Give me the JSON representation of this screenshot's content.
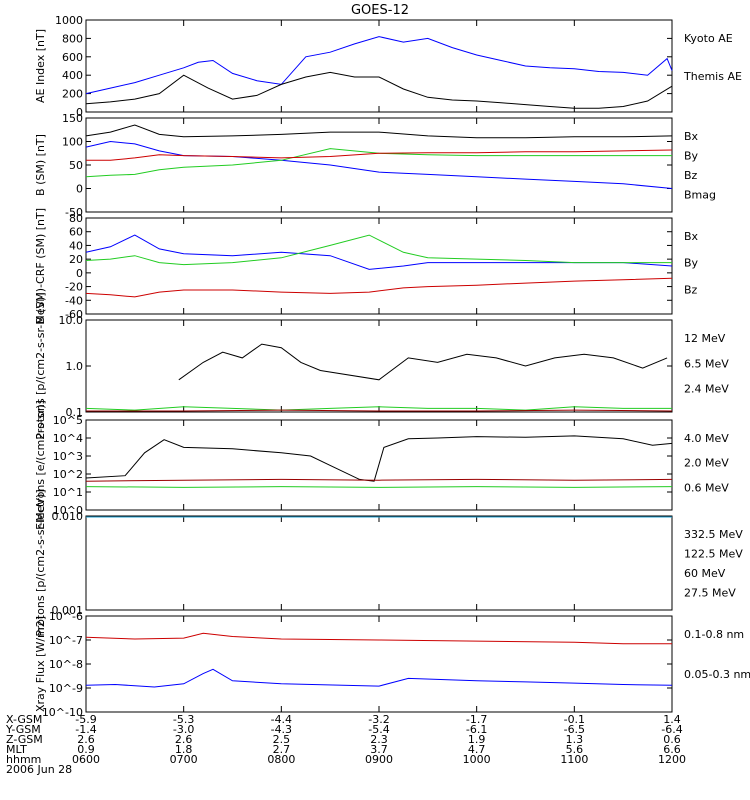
{
  "title": "GOES-12",
  "colors": {
    "blue": "#0000ff",
    "black": "#000000",
    "green": "#22cc22",
    "red": "#cc0000",
    "darkred": "#990000",
    "yellow": "#e6c800",
    "cyan": "#1fa3d6"
  },
  "chart_data": [
    {
      "type": "line",
      "ylabel": "AE Index [nT]",
      "ylim": [
        0,
        1000
      ],
      "yscale": "linear",
      "yticks": [
        "0",
        "200",
        "400",
        "600",
        "800",
        "1000"
      ],
      "legend": [
        {
          "label": "Kyoto AE",
          "color": "#0000ff"
        },
        {
          "label": "Themis AE",
          "color": "#000000"
        }
      ],
      "series": [
        {
          "name": "Kyoto AE",
          "color": "#0000ff",
          "x": [
            0,
            0.25,
            0.5,
            0.75,
            1,
            1.15,
            1.3,
            1.5,
            1.75,
            2,
            2.25,
            2.5,
            2.75,
            3,
            3.25,
            3.5,
            3.75,
            4,
            4.25,
            4.5,
            4.75,
            5,
            5.25,
            5.5,
            5.75,
            5.95,
            6
          ],
          "y": [
            200,
            260,
            320,
            400,
            480,
            540,
            560,
            420,
            340,
            300,
            600,
            650,
            740,
            820,
            760,
            800,
            700,
            620,
            560,
            500,
            480,
            470,
            440,
            430,
            400,
            580,
            450
          ]
        },
        {
          "name": "Themis AE",
          "color": "#000000",
          "x": [
            0,
            0.25,
            0.5,
            0.75,
            1,
            1.25,
            1.5,
            1.75,
            2,
            2.25,
            2.5,
            2.75,
            3,
            3.25,
            3.5,
            3.75,
            4,
            4.25,
            4.5,
            4.75,
            5,
            5.25,
            5.5,
            5.75,
            6
          ],
          "y": [
            90,
            110,
            140,
            200,
            400,
            260,
            140,
            180,
            300,
            380,
            430,
            380,
            380,
            250,
            160,
            130,
            120,
            100,
            80,
            60,
            40,
            40,
            60,
            120,
            280
          ]
        }
      ]
    },
    {
      "type": "line",
      "ylabel": "B (SM) [nT]",
      "ylim": [
        -50,
        150
      ],
      "yscale": "linear",
      "yticks": [
        "-50",
        "0",
        "50",
        "100",
        "150"
      ],
      "legend": [
        {
          "label": "Bx",
          "color": "#0000ff"
        },
        {
          "label": "By",
          "color": "#22cc22"
        },
        {
          "label": "Bz",
          "color": "#cc0000"
        },
        {
          "label": "Bmag",
          "color": "#000000"
        }
      ],
      "series": [
        {
          "name": "Bx",
          "color": "#0000ff",
          "x": [
            0,
            0.25,
            0.5,
            0.75,
            1,
            1.5,
            2,
            2.5,
            3,
            3.5,
            4,
            4.5,
            5,
            5.5,
            6
          ],
          "y": [
            88,
            100,
            95,
            80,
            70,
            68,
            60,
            50,
            35,
            30,
            25,
            20,
            15,
            10,
            0
          ]
        },
        {
          "name": "By",
          "color": "#22cc22",
          "x": [
            0,
            0.25,
            0.5,
            0.75,
            1,
            1.5,
            2,
            2.5,
            3,
            3.5,
            4,
            4.5,
            5,
            5.5,
            6
          ],
          "y": [
            25,
            28,
            30,
            40,
            45,
            50,
            60,
            85,
            75,
            72,
            70,
            70,
            70,
            70,
            70
          ]
        },
        {
          "name": "Bz",
          "color": "#cc0000",
          "x": [
            0,
            0.25,
            0.5,
            0.75,
            1,
            1.5,
            2,
            2.5,
            3,
            3.5,
            4,
            4.5,
            5,
            5.5,
            6
          ],
          "y": [
            60,
            60,
            65,
            72,
            70,
            68,
            65,
            68,
            75,
            76,
            76,
            78,
            78,
            80,
            82
          ]
        },
        {
          "name": "Bmag",
          "color": "#000000",
          "x": [
            0,
            0.25,
            0.5,
            0.75,
            1,
            1.5,
            2,
            2.5,
            3,
            3.5,
            4,
            4.5,
            5,
            5.5,
            6
          ],
          "y": [
            112,
            120,
            135,
            115,
            110,
            112,
            115,
            120,
            120,
            112,
            108,
            108,
            110,
            110,
            112
          ]
        }
      ]
    },
    {
      "type": "line",
      "ylabel": "B (SM)-CRF (SM) [nT]",
      "ylim": [
        -60,
        80
      ],
      "yscale": "linear",
      "yticks": [
        "-60",
        "-40",
        "-20",
        "0",
        "20",
        "40",
        "60",
        "80"
      ],
      "legend": [
        {
          "label": "Bx",
          "color": "#0000ff"
        },
        {
          "label": "By",
          "color": "#22cc22"
        },
        {
          "label": "Bz",
          "color": "#cc0000"
        }
      ],
      "series": [
        {
          "name": "Bx",
          "color": "#0000ff",
          "x": [
            0,
            0.25,
            0.5,
            0.75,
            1,
            1.5,
            2,
            2.5,
            2.9,
            3.25,
            3.5,
            4,
            4.5,
            5,
            5.5,
            6
          ],
          "y": [
            30,
            38,
            55,
            35,
            28,
            25,
            30,
            25,
            5,
            10,
            15,
            15,
            15,
            15,
            15,
            10
          ]
        },
        {
          "name": "By",
          "color": "#22cc22",
          "x": [
            0,
            0.25,
            0.5,
            0.75,
            1,
            1.5,
            2,
            2.5,
            2.9,
            3.25,
            3.5,
            4,
            4.5,
            5,
            5.5,
            6
          ],
          "y": [
            18,
            20,
            25,
            15,
            12,
            15,
            22,
            40,
            55,
            30,
            22,
            20,
            18,
            15,
            15,
            15
          ]
        },
        {
          "name": "Bz",
          "color": "#cc0000",
          "x": [
            0,
            0.25,
            0.5,
            0.75,
            1,
            1.5,
            2,
            2.5,
            2.9,
            3.25,
            3.5,
            4,
            4.5,
            5,
            5.5,
            6
          ],
          "y": [
            -30,
            -32,
            -35,
            -28,
            -25,
            -25,
            -28,
            -30,
            -28,
            -22,
            -20,
            -18,
            -15,
            -12,
            -10,
            -8
          ]
        }
      ]
    },
    {
      "type": "line",
      "ylabel": "Protons [p/(cm2-s-sr-MeV)]",
      "ylim": [
        0.1,
        10
      ],
      "yscale": "log",
      "yticks": [
        "0.1",
        "1.0",
        "10.0"
      ],
      "legend": [
        {
          "label": "12 MeV",
          "color": "#990000"
        },
        {
          "label": "6.5 MeV",
          "color": "#22cc22"
        },
        {
          "label": "2.4 MeV",
          "color": "#000000"
        }
      ],
      "series": [
        {
          "name": "2.4 MeV",
          "color": "#000000",
          "x": [
            0.95,
            1.2,
            1.4,
            1.6,
            1.8,
            2,
            2.2,
            2.4,
            3.0,
            3.3,
            3.6,
            3.9,
            4.2,
            4.5,
            4.8,
            5.1,
            5.4,
            5.7,
            5.95
          ],
          "y": [
            0.5,
            1.2,
            2.0,
            1.5,
            3.0,
            2.5,
            1.2,
            0.8,
            0.5,
            1.5,
            1.2,
            1.8,
            1.5,
            1.0,
            1.5,
            1.8,
            1.5,
            0.9,
            1.5
          ]
        },
        {
          "name": "6.5 MeV",
          "color": "#22cc22",
          "x": [
            0,
            0.5,
            1,
            1.5,
            2,
            2.5,
            3,
            3.5,
            4,
            4.5,
            5,
            5.5,
            6
          ],
          "y": [
            0.12,
            0.11,
            0.13,
            0.12,
            0.11,
            0.12,
            0.13,
            0.12,
            0.12,
            0.11,
            0.13,
            0.12,
            0.12
          ]
        },
        {
          "name": "12 MeV",
          "color": "#990000",
          "x": [
            0,
            1,
            2,
            3,
            4,
            5,
            6
          ],
          "y": [
            0.1,
            0.1,
            0.11,
            0.1,
            0.1,
            0.11,
            0.1
          ]
        }
      ]
    },
    {
      "type": "line",
      "ylabel": "Electrons [e/(cm2-s-sr)]",
      "ylim": [
        1,
        100000
      ],
      "yscale": "log",
      "yticks": [
        "10^0",
        "10^1",
        "10^2",
        "10^3",
        "10^4",
        "10^5"
      ],
      "legend": [
        {
          "label": "4.0 MeV",
          "color": "#990000"
        },
        {
          "label": "2.0 MeV",
          "color": "#22cc22"
        },
        {
          "label": "0.6 MeV",
          "color": "#000000"
        }
      ],
      "series": [
        {
          "name": "0.6 MeV",
          "color": "#000000",
          "x": [
            0,
            0.4,
            0.6,
            0.8,
            1.0,
            1.5,
            2.0,
            2.3,
            2.5,
            2.8,
            2.95,
            3.05,
            3.3,
            3.6,
            4,
            4.5,
            5,
            5.5,
            5.8,
            6
          ],
          "y": [
            60,
            80,
            1500,
            8000,
            3000,
            2500,
            1500,
            1000,
            300,
            50,
            40,
            3000,
            9000,
            10000,
            12000,
            11000,
            13000,
            9000,
            4000,
            5000
          ]
        },
        {
          "name": "2.0 MeV",
          "color": "#22cc22",
          "x": [
            0,
            1,
            2,
            3,
            4,
            5,
            6
          ],
          "y": [
            20,
            18,
            20,
            18,
            20,
            18,
            20
          ]
        },
        {
          "name": "4.0 MeV",
          "color": "#990000",
          "x": [
            0,
            1,
            2,
            3,
            4,
            5,
            6
          ],
          "y": [
            40,
            45,
            50,
            45,
            50,
            45,
            50
          ]
        }
      ]
    },
    {
      "type": "line",
      "ylabel": "Protons [p/(cm2-s-sr-MeV)]",
      "ylim": [
        0.001,
        0.1
      ],
      "yscale": "log",
      "yticks": [
        "0.001",
        "0.010"
      ],
      "legend": [
        {
          "label": "332.5 MeV",
          "color": "#cc0000"
        },
        {
          "label": "122.5 MeV",
          "color": "#e6c800"
        },
        {
          "label": "60 MeV",
          "color": "#1fa3d6"
        },
        {
          "label": "27.5 MeV",
          "color": "#000000"
        }
      ],
      "series": [
        {
          "name": "27.5 MeV",
          "color": "#000000",
          "x": [
            0,
            1,
            2,
            3,
            4,
            5,
            6
          ],
          "y": [
            0.02,
            0.02,
            0.02,
            0.02,
            0.02,
            0.02,
            0.02
          ]
        },
        {
          "name": "60 MeV",
          "color": "#1fa3d6",
          "x": [
            0,
            1,
            2,
            3,
            4,
            5,
            6
          ],
          "y": [
            0.015,
            0.014,
            0.015,
            0.014,
            0.015,
            0.014,
            0.015
          ]
        }
      ]
    },
    {
      "type": "line",
      "ylabel": "Xray Flux [W/m2]",
      "ylim": [
        1e-10,
        1e-08
      ],
      "yscale": "log",
      "yticks": [
        "10^-10",
        "10^-9",
        "10^-8",
        "10^-7",
        "10^-6"
      ],
      "legend": [
        {
          "label": "0.1-0.8 nm",
          "color": "#cc0000"
        },
        {
          "label": "0.05-0.3 nm",
          "color": "#0000ff"
        }
      ],
      "series": [
        {
          "name": "0.1-0.8 nm",
          "color": "#cc0000",
          "x": [
            0,
            0.5,
            1,
            1.2,
            1.5,
            2,
            3,
            4,
            5,
            5.5,
            6
          ],
          "y": [
            1.3e-07,
            1.1e-07,
            1.2e-07,
            1.9e-07,
            1.4e-07,
            1.1e-07,
            1e-07,
            9e-08,
            8e-08,
            7e-08,
            7e-08
          ]
        },
        {
          "name": "0.05-0.3 nm",
          "color": "#0000ff",
          "x": [
            0,
            0.3,
            0.7,
            1,
            1.2,
            1.3,
            1.5,
            2,
            3,
            3.3,
            4,
            4.5,
            5,
            5.5,
            6
          ],
          "y": [
            1.3e-09,
            1.4e-09,
            1.1e-09,
            1.5e-09,
            4e-09,
            6e-09,
            2e-09,
            1.5e-09,
            1.2e-09,
            2.5e-09,
            2e-09,
            1.8e-09,
            1.6e-09,
            1.4e-09,
            1.3e-09
          ]
        }
      ]
    }
  ],
  "footer": {
    "labels": [
      "X-GSM",
      "Y-GSM",
      "Z-GSM",
      "MLT",
      "hhmm",
      "2006 Jun 28"
    ],
    "columns": [
      {
        "xgsm": "-5.9",
        "ygsm": "-1.4",
        "zgsm": "2.6",
        "mlt": "0.9",
        "hhmm": "0600"
      },
      {
        "xgsm": "-5.3",
        "ygsm": "-3.0",
        "zgsm": "2.6",
        "mlt": "1.8",
        "hhmm": "0700"
      },
      {
        "xgsm": "-4.4",
        "ygsm": "-4.3",
        "zgsm": "2.5",
        "mlt": "2.7",
        "hhmm": "0800"
      },
      {
        "xgsm": "-3.2",
        "ygsm": "-5.4",
        "zgsm": "2.3",
        "mlt": "3.7",
        "hhmm": "0900"
      },
      {
        "xgsm": "-1.7",
        "ygsm": "-6.1",
        "zgsm": "1.9",
        "mlt": "4.7",
        "hhmm": "1000"
      },
      {
        "xgsm": "-0.1",
        "ygsm": "-6.5",
        "zgsm": "1.3",
        "mlt": "5.6",
        "hhmm": "1100"
      },
      {
        "xgsm": "1.4",
        "ygsm": "-6.4",
        "zgsm": "0.6",
        "mlt": "6.6",
        "hhmm": "1200"
      }
    ]
  }
}
